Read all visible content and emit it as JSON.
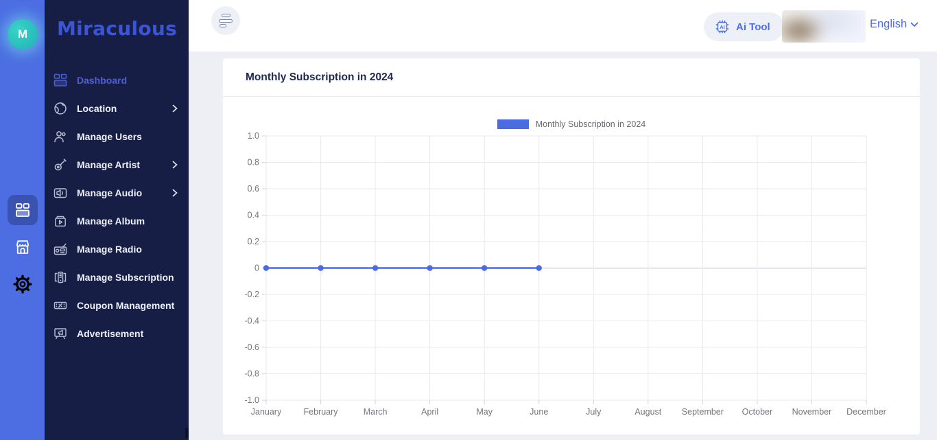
{
  "app": {
    "name": "Miraculous",
    "avatar_letter": "M"
  },
  "colors": {
    "rail_blue": "#4c6ee2",
    "sidebar_navy": "#171e46",
    "accent_blue": "#4c6ee2",
    "active_menu_blue": "#4d5fd3",
    "avatar_teal": "#2fc4bd",
    "page_bg": "#edeff4",
    "chart_line_blue": "#4b6ce1"
  },
  "header": {
    "ai_tool_label": "Ai Tool",
    "language_selector": "English"
  },
  "sidebar": {
    "items": [
      {
        "label": "Dashboard",
        "icon": "dashboard-icon",
        "active": true
      },
      {
        "label": "Location",
        "icon": "globe-icon",
        "has_submenu": true
      },
      {
        "label": "Manage Users",
        "icon": "users-icon"
      },
      {
        "label": "Manage Artist",
        "icon": "guitar-icon",
        "has_submenu": true
      },
      {
        "label": "Manage Audio",
        "icon": "speaker-icon",
        "has_submenu": true
      },
      {
        "label": "Manage Album",
        "icon": "album-icon"
      },
      {
        "label": "Manage Radio",
        "icon": "radio-icon"
      },
      {
        "label": "Manage Subscription",
        "icon": "subscription-icon"
      },
      {
        "label": "Coupon Management",
        "icon": "coupon-icon"
      },
      {
        "label": "Advertisement",
        "icon": "megaphone-icon"
      }
    ]
  },
  "main": {
    "card_title": "Monthly Subscription in 2024"
  },
  "chart_data": {
    "type": "line",
    "title": "Monthly Subscription in 2024",
    "categories": [
      "January",
      "February",
      "March",
      "April",
      "May",
      "June",
      "July",
      "August",
      "September",
      "October",
      "November",
      "December"
    ],
    "series": [
      {
        "name": "Monthly Subscription in 2024",
        "color": "#4b6ce1",
        "values": [
          0,
          0,
          0,
          0,
          0,
          0,
          null,
          null,
          null,
          null,
          null,
          null
        ]
      }
    ],
    "ylim": [
      -1.0,
      1.0
    ],
    "ytick_step": 0.2,
    "ytick_labels": [
      "1.0",
      "0.8",
      "0.6",
      "0.4",
      "0.2",
      "0",
      "-0.2",
      "-0.4",
      "-0.6",
      "-0.8",
      "-1.0"
    ],
    "grid": true,
    "legend_position": "top",
    "xlabel": "",
    "ylabel": ""
  }
}
